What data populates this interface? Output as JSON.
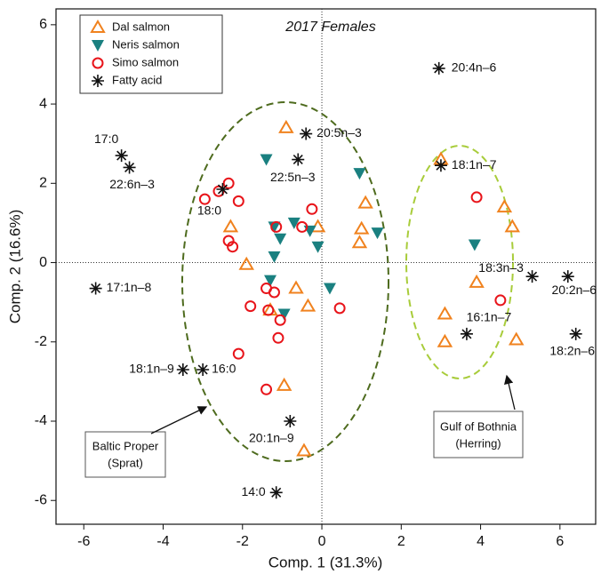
{
  "chart_data": {
    "type": "scatter",
    "title": "2017 Females",
    "x_label": "Comp. 1 (31.3%)",
    "y_label": "Comp. 2 (16.6%)",
    "xlim": [
      -6.7,
      6.9
    ],
    "ylim": [
      -6.6,
      6.4
    ],
    "xticks": [
      -6,
      -4,
      -2,
      0,
      2,
      4,
      6
    ],
    "yticks": [
      -6,
      -4,
      -2,
      0,
      2,
      4,
      6
    ],
    "series": [
      {
        "name": "Dal salmon",
        "color": "#f0821e",
        "marker": "triangle-up",
        "x": [
          -0.9,
          1.1,
          -0.1,
          1.0,
          0.95,
          -2.3,
          -1.9,
          -0.65,
          -0.35,
          -1.3,
          -0.95,
          -0.45,
          3.0,
          4.6,
          4.8,
          3.9,
          3.1,
          3.1,
          4.9
        ],
        "y": [
          3.4,
          1.5,
          0.9,
          0.85,
          0.5,
          0.9,
          -0.05,
          -0.65,
          -1.1,
          -1.2,
          -3.1,
          -4.75,
          2.6,
          1.4,
          0.9,
          -0.5,
          -1.3,
          -2.0,
          -1.95
        ]
      },
      {
        "name": "Neris salmon",
        "color": "#1a8080",
        "marker": "triangle-down",
        "x": [
          -1.4,
          0.95,
          -1.2,
          -0.7,
          -0.3,
          -0.1,
          -1.05,
          -1.2,
          -1.3,
          -0.95,
          1.4,
          0.2,
          3.85
        ],
        "y": [
          2.6,
          2.25,
          0.9,
          1.0,
          0.8,
          0.4,
          0.6,
          0.15,
          -0.45,
          -1.3,
          0.75,
          -0.65,
          0.45
        ]
      },
      {
        "name": "Simo salmon",
        "color": "#e8141a",
        "marker": "circle",
        "x": [
          -2.35,
          -2.95,
          -2.6,
          -2.1,
          -0.25,
          -0.5,
          -1.15,
          -2.35,
          -2.25,
          -1.4,
          -1.2,
          -1.8,
          -1.35,
          -1.05,
          -1.1,
          -2.1,
          -1.4,
          0.45,
          3.9,
          4.5
        ],
        "y": [
          2.0,
          1.6,
          1.8,
          1.55,
          1.35,
          0.9,
          0.9,
          0.55,
          0.4,
          -0.65,
          -0.75,
          -1.1,
          -1.2,
          -1.45,
          -1.9,
          -2.3,
          -3.2,
          -1.15,
          1.65,
          -0.95
        ]
      },
      {
        "name": "Fatty acid",
        "color": "#111111",
        "marker": "asterisk",
        "x": [
          -5.05,
          -4.85,
          -2.5,
          -0.4,
          -0.6,
          2.95,
          3.0,
          5.3,
          6.2,
          3.65,
          6.4,
          -5.7,
          -3.5,
          -3.0,
          -0.8,
          -1.15
        ],
        "y": [
          2.7,
          2.4,
          1.85,
          3.25,
          2.6,
          4.9,
          2.45,
          -0.35,
          -0.35,
          -1.8,
          -1.8,
          -0.65,
          -2.7,
          -2.7,
          -4.0,
          -5.8
        ],
        "labels": [
          "17:0",
          "22:6n–3",
          "18:0",
          "20:5n–3",
          "22:5n–3",
          "20:4n–6",
          "18:1n–7",
          "18:3n–3",
          "20:2n–6",
          "16:1n–7",
          "18:2n–6",
          "17:1n–8",
          "18:1n–9",
          "16:0",
          "20:1n–9",
          "14:0"
        ]
      }
    ],
    "annotations": [
      {
        "lines": [
          "Baltic Proper",
          "(Sprat)"
        ]
      },
      {
        "lines": [
          "Gulf of Bothnia",
          "(Herring)"
        ]
      }
    ]
  }
}
